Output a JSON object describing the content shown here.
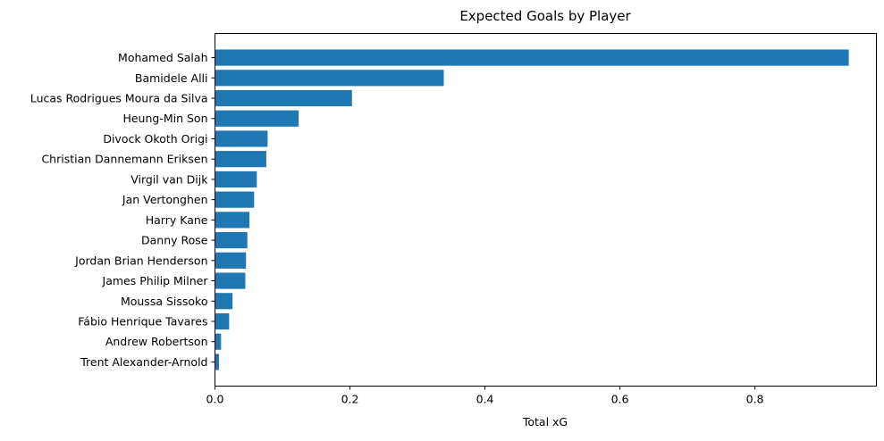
{
  "chart_data": {
    "type": "bar",
    "orientation": "horizontal",
    "title": "Expected Goals by Player",
    "xlabel": "Total xG",
    "ylabel": "",
    "categories": [
      "Mohamed Salah",
      "Bamidele Alli",
      "Lucas Rodrigues Moura da Silva",
      "Heung-Min Son",
      "Divock Okoth Origi",
      "Christian Dannemann Eriksen",
      "Virgil van Dijk",
      "Jan Vertonghen",
      "Harry Kane",
      "Danny Rose",
      "Jordan Brian Henderson",
      "James Philip Milner",
      "Moussa Sissoko",
      "Fábio Henrique Tavares",
      "Andrew Robertson",
      "Trent Alexander-Arnold"
    ],
    "values": [
      0.939,
      0.339,
      0.203,
      0.124,
      0.078,
      0.076,
      0.062,
      0.058,
      0.051,
      0.048,
      0.046,
      0.045,
      0.026,
      0.021,
      0.009,
      0.006
    ],
    "xlim": [
      0,
      0.98
    ],
    "xticks": [
      0.0,
      0.2,
      0.4,
      0.6,
      0.8
    ],
    "xtick_labels": [
      "0.0",
      "0.2",
      "0.4",
      "0.6",
      "0.8"
    ],
    "grid": false,
    "legend": "none",
    "bar_color": "#1f77b4"
  }
}
